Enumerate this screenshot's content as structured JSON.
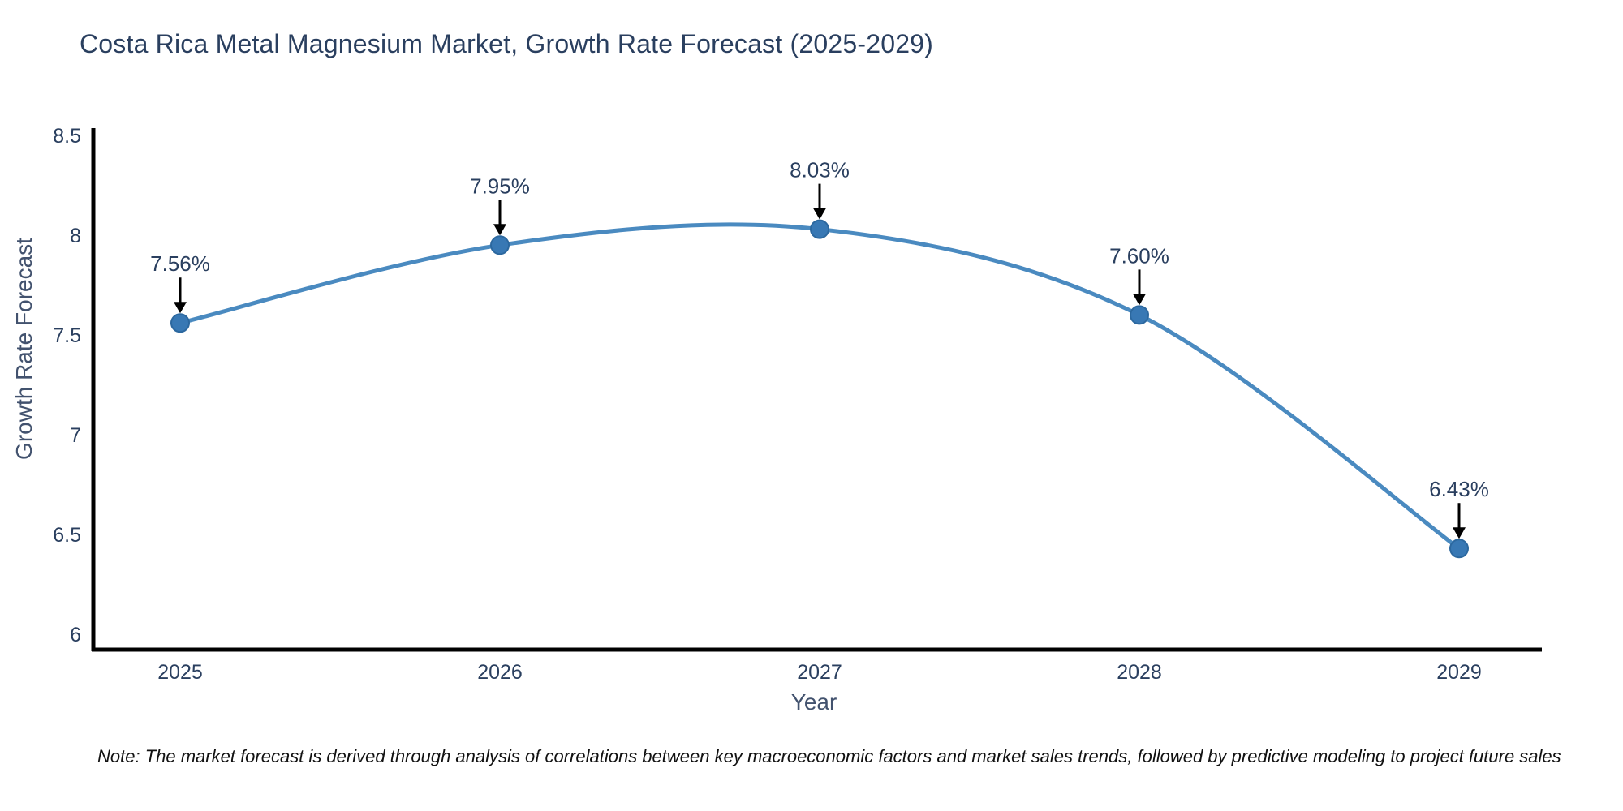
{
  "title": "Costa Rica Metal Magnesium Market, Growth Rate Forecast (2025-2029)",
  "note": "Note: The market forecast is derived through analysis of correlations between key macroeconomic factors and market sales trends, followed by predictive modeling to project future sales",
  "chart_data": {
    "type": "line",
    "title": "Costa Rica Metal Magnesium Market, Growth Rate Forecast (2025-2029)",
    "xlabel": "Year",
    "ylabel": "Growth Rate Forecast",
    "x": [
      2025,
      2026,
      2027,
      2028,
      2029
    ],
    "series": [
      {
        "name": "Growth Rate Forecast",
        "values": [
          7.56,
          7.95,
          8.03,
          7.6,
          6.43
        ]
      }
    ],
    "point_labels": [
      "7.56%",
      "7.95%",
      "8.03%",
      "7.60%",
      "6.43%"
    ],
    "yticks": [
      8.5,
      8,
      7.5,
      7,
      6.5,
      6
    ],
    "ylim": [
      5.93,
      8.55
    ],
    "grid": false,
    "legend": "none",
    "line_shape": "spline",
    "annotation_style": "value labels above points with downward black arrows",
    "colors": {
      "line": "#4a8ac0",
      "marker": "#3878b4",
      "marker_edge": "#2c689f",
      "axis": "#000000",
      "text": "#2a3f5f",
      "axis_title_text": "#42526e",
      "arrow": "#000000",
      "background": "#ffffff"
    }
  }
}
